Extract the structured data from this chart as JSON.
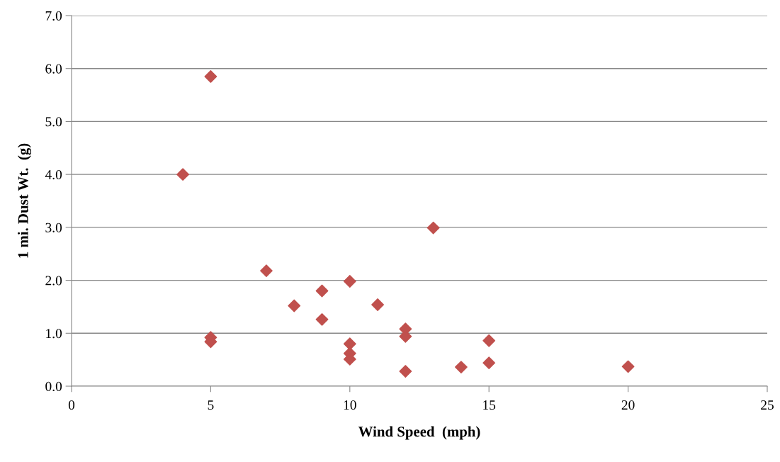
{
  "chart_data": {
    "type": "scatter",
    "xlabel": "Wind Speed  (mph)",
    "ylabel": "1 mi. Dust Wt.  (g)",
    "x": [
      4,
      5,
      5,
      5,
      7,
      8,
      9,
      9,
      10,
      10,
      10,
      10,
      11,
      12,
      12,
      12,
      13,
      14,
      15,
      15,
      20
    ],
    "series": [
      {
        "color": "#c0504d",
        "values": [
          4.0,
          5.85,
          0.92,
          0.84,
          2.18,
          1.52,
          1.8,
          1.26,
          1.98,
          0.8,
          0.62,
          0.51,
          1.54,
          1.08,
          0.94,
          0.28,
          2.99,
          0.36,
          0.86,
          0.44,
          0.37
        ]
      }
    ],
    "xlim": [
      0,
      25
    ],
    "xticks": [
      0,
      5,
      10,
      15,
      20,
      25
    ],
    "ylim": [
      0,
      7
    ],
    "yticks": [
      {
        "value": 0,
        "label": "0.0"
      },
      {
        "value": 1,
        "label": "1.0"
      },
      {
        "value": 2,
        "label": "2.0"
      },
      {
        "value": 3,
        "label": "3.0"
      },
      {
        "value": 4,
        "label": "4.0"
      },
      {
        "value": 5,
        "label": "5.0"
      },
      {
        "value": 6,
        "label": "6.0"
      },
      {
        "value": 7,
        "label": "7.0"
      }
    ],
    "grid": "y",
    "marker": "diamond",
    "legend": false
  }
}
